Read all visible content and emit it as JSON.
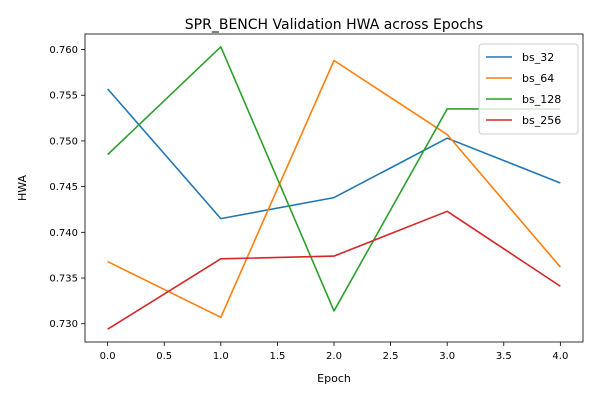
{
  "chart_data": {
    "type": "line",
    "title": "SPR_BENCH Validation HWA across Epochs",
    "xlabel": "Epoch",
    "ylabel": "HWA",
    "x": [
      0,
      1,
      2,
      3,
      4
    ],
    "xlim": [
      -0.2,
      4.2
    ],
    "ylim": [
      0.728,
      0.7617
    ],
    "xticks": [
      "0.0",
      "0.5",
      "1.0",
      "1.5",
      "2.0",
      "2.5",
      "3.0",
      "3.5",
      "4.0"
    ],
    "yticks": [
      "0.730",
      "0.735",
      "0.740",
      "0.745",
      "0.750",
      "0.755",
      "0.760"
    ],
    "legend_position": "top-right",
    "grid": false,
    "series": [
      {
        "name": "bs_32",
        "color": "#1f77b4",
        "values": [
          0.7557,
          0.7415,
          0.7438,
          0.7503,
          0.7454
        ]
      },
      {
        "name": "bs_64",
        "color": "#ff7f0e",
        "values": [
          0.7368,
          0.7307,
          0.7588,
          0.7507,
          0.7362
        ]
      },
      {
        "name": "bs_128",
        "color": "#2ca02c",
        "values": [
          0.7485,
          0.7603,
          0.7314,
          0.7535,
          0.7535
        ]
      },
      {
        "name": "bs_256",
        "color": "#d62728",
        "values": [
          0.7294,
          0.7371,
          0.7374,
          0.7423,
          0.7341
        ]
      }
    ]
  }
}
